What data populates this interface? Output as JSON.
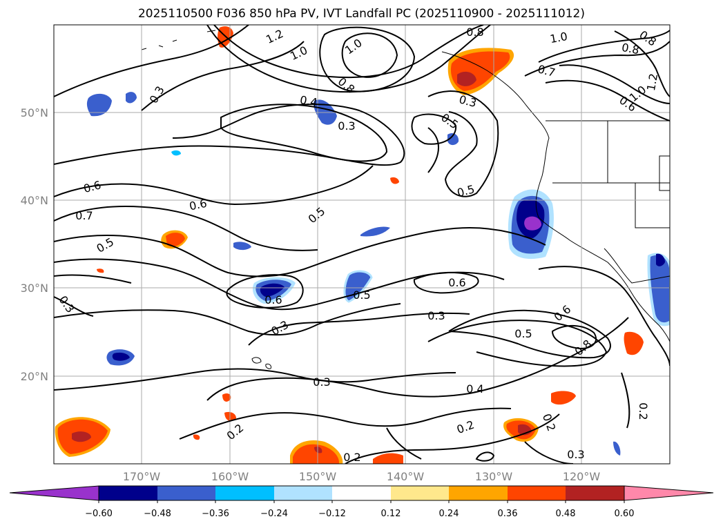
{
  "title": "2025110500 F036 850 hPa PV, IVT Landfall PC (2025110900 - 2025111012)",
  "map": {
    "lon_ticks": [
      "170°W",
      "160°W",
      "150°W",
      "140°W",
      "130°W",
      "120°W"
    ],
    "lat_ticks": [
      "50°N",
      "40°N",
      "30°N",
      "20°N"
    ],
    "gridlines": true,
    "extent": {
      "lon": [
        -180,
        -110
      ],
      "lat": [
        10,
        60
      ]
    }
  },
  "contour_labels": [
    "1.2",
    "1.0",
    "0.8",
    "1.0",
    "0.8",
    "1.0",
    "0.8",
    "0.7",
    "0.3",
    "0.4",
    "0.3",
    "0.5",
    "0.3",
    "0.6",
    "0.6",
    "0.7",
    "0.5",
    "0.5",
    "0.5",
    "0.6",
    "0.3",
    "0.6",
    "0.5",
    "0.3",
    "0.3",
    "0.6",
    "0.5",
    "0.8",
    "0.4",
    "0.3",
    "0.2",
    "0.2",
    "0.2",
    "0.2",
    "0.3",
    "1.0",
    "0.6",
    "1.2",
    "0.8",
    "0.2"
  ],
  "colorbar": {
    "ticks": [
      "−0.60",
      "−0.48",
      "−0.36",
      "−0.24",
      "−0.12",
      "0.12",
      "0.24",
      "0.36",
      "0.48",
      "0.60"
    ],
    "colors": [
      "#9932cc",
      "#00008b",
      "#3a5fcd",
      "#00bfff",
      "#b0e2ff",
      "#ffffff",
      "#ffe88c",
      "#ffa500",
      "#ff4500",
      "#b22222",
      "#ff88aa"
    ]
  }
}
